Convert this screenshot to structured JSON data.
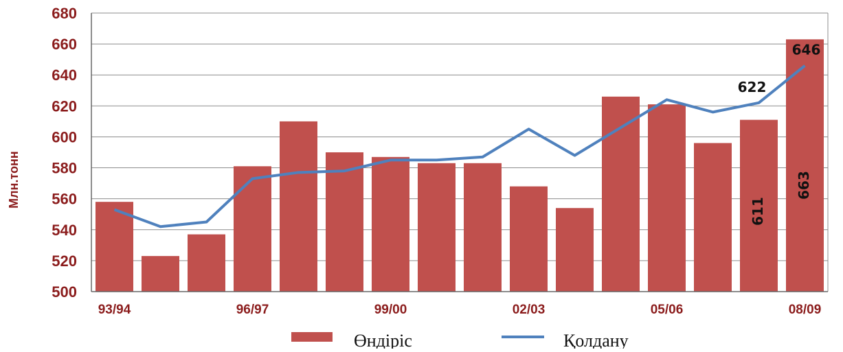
{
  "chart_data": {
    "type": "bar",
    "ylabel": "Млн.тонн",
    "ylim": [
      500,
      680
    ],
    "yticks": [
      500,
      520,
      540,
      560,
      580,
      600,
      620,
      640,
      660,
      680
    ],
    "xtick_labels": [
      "93/94",
      "96/97",
      "99/00",
      "02/03",
      "05/06",
      "08/09"
    ],
    "grid": true,
    "legend": "bottom",
    "series": [
      {
        "name": "Өндіріс",
        "kind": "bar",
        "color": "#c0504d",
        "values": [
          558,
          523,
          537,
          581,
          610,
          590,
          587,
          583,
          583,
          568,
          554,
          626,
          621,
          596,
          611,
          663
        ]
      },
      {
        "name": "Қолдану",
        "kind": "line",
        "color": "#4f81bd",
        "values": [
          553,
          542,
          545,
          573,
          577,
          578,
          585,
          585,
          587,
          605,
          588,
          606,
          624,
          616,
          622,
          646
        ]
      }
    ],
    "annotations": [
      {
        "series": 1,
        "index": 14,
        "text": "622"
      },
      {
        "series": 1,
        "index": 15,
        "text": "646"
      },
      {
        "series": 0,
        "index": 14,
        "text": "611"
      },
      {
        "series": 0,
        "index": 15,
        "text": "663"
      }
    ]
  }
}
